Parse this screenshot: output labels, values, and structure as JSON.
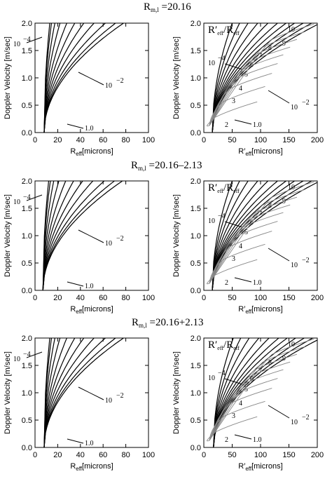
{
  "figure": {
    "row_titles": [
      {
        "main": "R",
        "sub": "m,l",
        "tail": " =20.16"
      },
      {
        "main": "R",
        "sub": "m,l",
        "tail": " =20.16–2.13"
      },
      {
        "main": "R",
        "sub": "m,l",
        "tail": " =20.16+2.13"
      }
    ]
  },
  "chart_data": [
    {
      "type": "line",
      "panel": "row1-left",
      "ylabel": "Doppler Velocity  [m/sec]",
      "xlabel": {
        "main": "R",
        "sub": "eff",
        "tail": "[microns]"
      },
      "xlim": [
        0,
        100
      ],
      "ylim": [
        0,
        2.0
      ],
      "xticks": [
        "0",
        "20",
        "40",
        "60",
        "80",
        "100"
      ],
      "yticks": [
        "0.0",
        "0.5",
        "1.0",
        "1.5",
        "2.0"
      ],
      "annotations": [
        "10",
        "−4",
        "10",
        "−2",
        "1.0"
      ],
      "series": [
        {
          "x0": 8,
          "k": 5.0,
          "color": "#000000"
        },
        {
          "x0": 8,
          "k": 6.5,
          "color": "#000000"
        },
        {
          "x0": 8,
          "k": 9.5,
          "color": "#000000"
        },
        {
          "x0": 8,
          "k": 14,
          "color": "#000000"
        },
        {
          "x0": 8,
          "k": 20,
          "color": "#000000"
        },
        {
          "x0": 8,
          "k": 27,
          "color": "#000000"
        },
        {
          "x0": 8,
          "k": 35,
          "color": "#000000"
        },
        {
          "x0": 8,
          "k": 44,
          "color": "#000000"
        },
        {
          "x0": 8,
          "k": 54,
          "color": "#000000"
        },
        {
          "x0": 8,
          "k": 63,
          "color": "#000000"
        },
        {
          "x0": 8,
          "k": 70,
          "color": "#000000"
        }
      ]
    },
    {
      "type": "line",
      "panel": "row1-right",
      "ylabel": "Doppler Velocity  [m/sec]",
      "xlabel": {
        "main": "R′",
        "sub": "eff",
        "tail": "[microns]"
      },
      "xlim": [
        0,
        200
      ],
      "ylim": [
        0,
        2.0
      ],
      "xticks": [
        "0",
        "50",
        "100",
        "150",
        "200"
      ],
      "yticks": [
        "0.0",
        "0.5",
        "1.0",
        "1.5",
        "2.0"
      ],
      "legend_text": {
        "a": "R′",
        "asub": "eff",
        "b": "/R",
        "bsub": "eff"
      },
      "annotations": [
        "10",
        "9",
        "8",
        "7",
        "6",
        "5",
        "4",
        "3",
        "2",
        "10",
        "−4",
        "10",
        "−2",
        "1.0"
      ],
      "series": [
        {
          "x0": 15,
          "k": 35,
          "color": "#000000"
        },
        {
          "x0": 15,
          "k": 48,
          "color": "#000000"
        },
        {
          "x0": 15,
          "k": 63,
          "color": "#000000"
        },
        {
          "x0": 15,
          "k": 80,
          "color": "#000000"
        },
        {
          "x0": 15,
          "k": 98,
          "color": "#000000"
        },
        {
          "x0": 15,
          "k": 115,
          "color": "#000000"
        },
        {
          "x0": 15,
          "k": 130,
          "color": "#000000"
        },
        {
          "x0": 15,
          "k": 145,
          "color": "#000000"
        },
        {
          "x0": 15,
          "k": 160,
          "color": "#000000"
        },
        {
          "x0": 15,
          "k": 175,
          "color": "#000000"
        },
        {
          "x0": 15,
          "k": 190,
          "color": "#000000"
        }
      ]
    },
    {
      "type": "line",
      "panel": "row2-left",
      "ylabel": "Doppler Velocity  [m/sec]",
      "xlabel": {
        "main": "R",
        "sub": "eff",
        "tail": "[microns]"
      },
      "xlim": [
        0,
        100
      ],
      "ylim": [
        0,
        2.0
      ],
      "xticks": [
        "0",
        "20",
        "40",
        "60",
        "80",
        "100"
      ],
      "yticks": [
        "0.0",
        "0.5",
        "1.0",
        "1.5",
        "2.0"
      ],
      "annotations": [
        "10",
        "−4",
        "10",
        "−2",
        "1.0"
      ],
      "series": [
        {
          "x0": 7,
          "k": 5.0,
          "color": "#000000"
        },
        {
          "x0": 7,
          "k": 6.5,
          "color": "#000000"
        },
        {
          "x0": 7,
          "k": 9.5,
          "color": "#000000"
        },
        {
          "x0": 7,
          "k": 14,
          "color": "#000000"
        },
        {
          "x0": 7,
          "k": 20,
          "color": "#000000"
        },
        {
          "x0": 7,
          "k": 27,
          "color": "#000000"
        },
        {
          "x0": 7,
          "k": 35,
          "color": "#000000"
        },
        {
          "x0": 7,
          "k": 44,
          "color": "#000000"
        },
        {
          "x0": 7,
          "k": 54,
          "color": "#000000"
        },
        {
          "x0": 7,
          "k": 63,
          "color": "#000000"
        },
        {
          "x0": 7,
          "k": 70,
          "color": "#000000"
        }
      ]
    },
    {
      "type": "line",
      "panel": "row2-right",
      "ylabel": "Doppler Velocity  [m/sec]",
      "xlabel": {
        "main": "R′",
        "sub": "eff",
        "tail": "[microns]"
      },
      "xlim": [
        0,
        200
      ],
      "ylim": [
        0,
        2.0
      ],
      "xticks": [
        "0",
        "50",
        "100",
        "150",
        "200"
      ],
      "yticks": [
        "0.0",
        "0.5",
        "1.0",
        "1.5",
        "2.0"
      ],
      "legend_text": {
        "a": "R′",
        "asub": "eff",
        "b": "/R",
        "bsub": "eff"
      },
      "annotations": [
        "10",
        "9",
        "8",
        "7",
        "6",
        "5",
        "4",
        "3",
        "2",
        "10",
        "−4",
        "10",
        "−2",
        "1.0"
      ],
      "series": [
        {
          "x0": 15,
          "k": 35,
          "color": "#000000"
        },
        {
          "x0": 15,
          "k": 48,
          "color": "#000000"
        },
        {
          "x0": 15,
          "k": 63,
          "color": "#000000"
        },
        {
          "x0": 15,
          "k": 80,
          "color": "#000000"
        },
        {
          "x0": 15,
          "k": 98,
          "color": "#000000"
        },
        {
          "x0": 15,
          "k": 115,
          "color": "#000000"
        },
        {
          "x0": 15,
          "k": 130,
          "color": "#000000"
        },
        {
          "x0": 15,
          "k": 145,
          "color": "#000000"
        },
        {
          "x0": 15,
          "k": 160,
          "color": "#000000"
        },
        {
          "x0": 15,
          "k": 175,
          "color": "#000000"
        },
        {
          "x0": 15,
          "k": 190,
          "color": "#000000"
        }
      ]
    },
    {
      "type": "line",
      "panel": "row3-left",
      "ylabel": "Doppler Velocity  [m/sec]",
      "xlabel": {
        "main": "R",
        "sub": "eff",
        "tail": "[microns]"
      },
      "xlim": [
        0,
        100
      ],
      "ylim": [
        0,
        2.0
      ],
      "xticks": [
        "0",
        "20",
        "40",
        "60",
        "80",
        "100"
      ],
      "yticks": [
        "0.0",
        "0.5",
        "1.0",
        "1.5",
        "2.0"
      ],
      "annotations": [
        "10",
        "−4",
        "10",
        "−2",
        "1.0"
      ],
      "series": [
        {
          "x0": 8,
          "k": 5.0,
          "color": "#000000"
        },
        {
          "x0": 8,
          "k": 6.5,
          "color": "#000000"
        },
        {
          "x0": 8,
          "k": 9.5,
          "color": "#000000"
        },
        {
          "x0": 8,
          "k": 14,
          "color": "#000000"
        },
        {
          "x0": 8,
          "k": 20,
          "color": "#000000"
        },
        {
          "x0": 8,
          "k": 27,
          "color": "#000000"
        },
        {
          "x0": 8,
          "k": 35,
          "color": "#000000"
        },
        {
          "x0": 8,
          "k": 44,
          "color": "#000000"
        },
        {
          "x0": 8,
          "k": 54,
          "color": "#000000"
        },
        {
          "x0": 8,
          "k": 63,
          "color": "#000000"
        },
        {
          "x0": 8,
          "k": 70,
          "color": "#000000"
        }
      ]
    },
    {
      "type": "line",
      "panel": "row3-right",
      "ylabel": "Doppler Velocity  [m/sec]",
      "xlabel": {
        "main": "R′",
        "sub": "eff",
        "tail": "[microns]"
      },
      "xlim": [
        0,
        200
      ],
      "ylim": [
        0,
        2.0
      ],
      "xticks": [
        "0",
        "50",
        "100",
        "150",
        "200"
      ],
      "yticks": [
        "0.0",
        "0.5",
        "1.0",
        "1.5",
        "2.0"
      ],
      "legend_text": {
        "a": "R′",
        "asub": "eff",
        "b": "/R",
        "bsub": "eff"
      },
      "annotations": [
        "10",
        "9",
        "8",
        "7",
        "6",
        "5",
        "4",
        "3",
        "2",
        "10",
        "−4",
        "10",
        "−2",
        "1.0"
      ],
      "series": [
        {
          "x0": 17,
          "k": 35,
          "color": "#000000"
        },
        {
          "x0": 17,
          "k": 48,
          "color": "#000000"
        },
        {
          "x0": 17,
          "k": 63,
          "color": "#000000"
        },
        {
          "x0": 17,
          "k": 80,
          "color": "#000000"
        },
        {
          "x0": 17,
          "k": 98,
          "color": "#000000"
        },
        {
          "x0": 17,
          "k": 115,
          "color": "#000000"
        },
        {
          "x0": 17,
          "k": 130,
          "color": "#000000"
        },
        {
          "x0": 17,
          "k": 145,
          "color": "#000000"
        },
        {
          "x0": 17,
          "k": 160,
          "color": "#000000"
        },
        {
          "x0": 17,
          "k": 175,
          "color": "#000000"
        },
        {
          "x0": 17,
          "k": 190,
          "color": "#000000"
        }
      ]
    }
  ]
}
